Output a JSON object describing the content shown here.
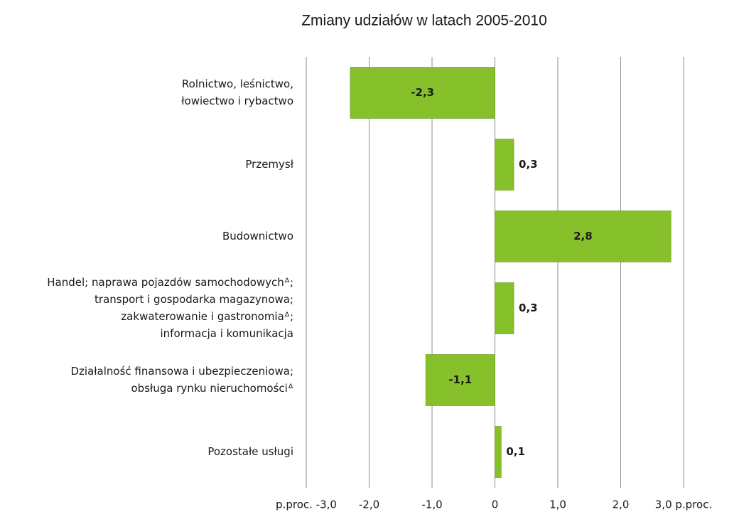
{
  "chart_data": {
    "type": "bar",
    "orientation": "horizontal",
    "title": "Zmiany udziałów w latach 2005-2010",
    "categories": [
      [
        "Rolnictwo, leśnictwo,",
        "łowiectwo i rybactwo"
      ],
      [
        "Przemysł"
      ],
      [
        "Budownictwo"
      ],
      [
        "Handel; naprawa pojazdów samochodowychᐞ;",
        "transport i gospodarka magazynowa;",
        "zakwaterowanie i gastronomiaᐞ;",
        "informacja i komunikacja"
      ],
      [
        "Działalność finansowa i ubezpieczeniowa;",
        "obsługa rynku nieruchomościᐞ"
      ],
      [
        "Pozostałe  usługi"
      ]
    ],
    "values": [
      -2.3,
      0.3,
      2.8,
      0.3,
      -1.1,
      0.1
    ],
    "value_labels": [
      "-2,3",
      "0,3",
      "2,8",
      "0,3",
      "-1,1",
      "0,1"
    ],
    "color": "#86c02a",
    "xlim": [
      -3,
      3
    ],
    "xticks": [
      {
        "value": -3,
        "label": "p.proc. -3,0"
      },
      {
        "value": -2,
        "label": "-2,0"
      },
      {
        "value": -1,
        "label": "-1,0"
      },
      0,
      {
        "value": 1,
        "label": "1,0"
      },
      {
        "value": 2,
        "label": "2,0"
      },
      {
        "value": 3,
        "label": "3,0 p.proc."
      }
    ],
    "grid": true
  }
}
